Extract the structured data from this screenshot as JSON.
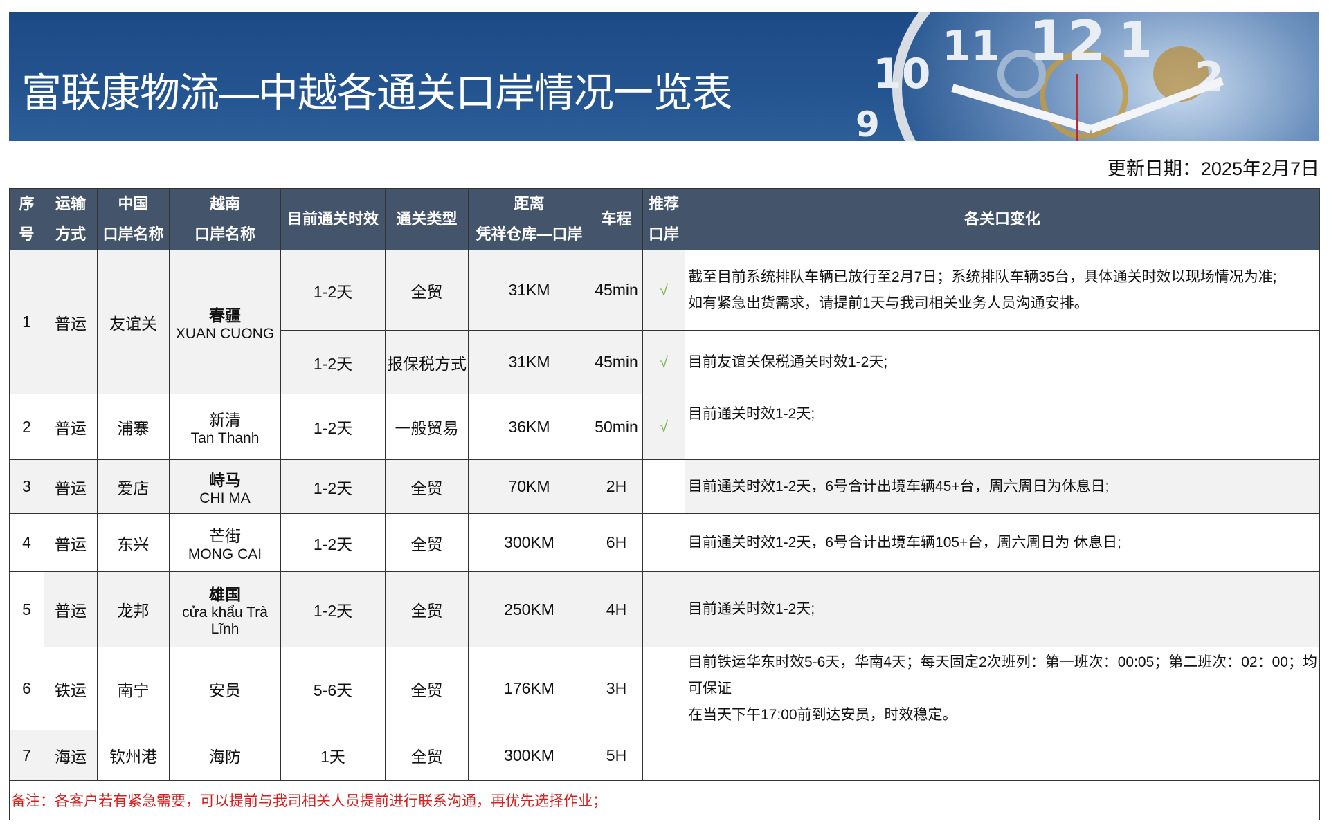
{
  "header": {
    "title": "富联康物流—中越各通关口岸情况一览表",
    "update_date": "更新日期：2025年2月7日"
  },
  "colors": {
    "header_bg": "#44546a",
    "banner": "#1f4e8c",
    "check": "#7ab648",
    "note": "#d21f1f"
  },
  "columns": [
    {
      "l1": "序",
      "l2": "号"
    },
    {
      "l1": "运输",
      "l2": "方式"
    },
    {
      "l1": "中国",
      "l2": "口岸名称"
    },
    {
      "l1": "越南",
      "l2": "口岸名称"
    },
    {
      "l1": "目前通关时效",
      "l2": ""
    },
    {
      "l1": "通关类型",
      "l2": ""
    },
    {
      "l1": "距离",
      "l2": "凭祥仓库—口岸"
    },
    {
      "l1": "车程",
      "l2": ""
    },
    {
      "l1": "推荐",
      "l2": "口岸"
    },
    {
      "l1": "各关口变化",
      "l2": ""
    }
  ],
  "rows": [
    {
      "no": "1",
      "mode": "普运",
      "cn_port": "友谊关",
      "vn_port_cn": "春疆",
      "vn_port_en": "XUAN CUONG",
      "sub": [
        {
          "time": "1-2天",
          "type": "全贸",
          "distance": "31KM",
          "drive": "45min",
          "recommend": "√",
          "remark1": "截至目前系统排队车辆已放行至2月7日；系统排队车辆35台，具体通关时效以现场情况为准;",
          "remark2": "如有紧急出货需求，请提前1天与我司相关业务人员沟通安排。"
        },
        {
          "time": "1-2天",
          "type": "报保税方式",
          "distance": "31KM",
          "drive": "45min",
          "recommend": "√",
          "remark1": "目前友谊关保税通关时效1-2天;"
        }
      ]
    },
    {
      "no": "2",
      "mode": "普运",
      "cn_port": "浦寨",
      "vn_port_cn": "新清",
      "vn_port_en": "Tan Thanh",
      "time": "1-2天",
      "type": "一般贸易",
      "distance": "36KM",
      "drive": "50min",
      "recommend": "√",
      "remark1": "目前通关时效1-2天;"
    },
    {
      "no": "3",
      "mode": "普运",
      "cn_port": "爱店",
      "vn_port_cn": "峙马",
      "vn_port_en": "CHI MA",
      "time": "1-2天",
      "type": "全贸",
      "distance": "70KM",
      "drive": "2H",
      "recommend": "",
      "remark1": "目前通关时效1-2天，6号合计出境车辆45+台，周六周日为休息日;"
    },
    {
      "no": "4",
      "mode": "普运",
      "cn_port": "东兴",
      "vn_port_cn": "芒街",
      "vn_port_en": "MONG CAI",
      "time": "1-2天",
      "type": "全贸",
      "distance": "300KM",
      "drive": "6H",
      "recommend": "",
      "remark1": "目前通关时效1-2天，6号合计出境车辆105+台，周六周日为 休息日;"
    },
    {
      "no": "5",
      "mode": "普运",
      "cn_port": "龙邦",
      "vn_port_cn": "雄国",
      "vn_port_en": "cửa khẩu Trà Lĩnh",
      "time": "1-2天",
      "type": "全贸",
      "distance": "250KM",
      "drive": "4H",
      "recommend": "",
      "remark1": "目前通关时效1-2天;"
    },
    {
      "no": "6",
      "mode": "铁运",
      "cn_port": "南宁",
      "vn_port_cn": "安员",
      "vn_port_en": "",
      "time": "5-6天",
      "type": "全贸",
      "distance": "176KM",
      "drive": "3H",
      "recommend": "",
      "remark1": "目前铁运华东时效5-6天，华南4天；每天固定2次班列：第一班次：00:05；第二班次：02：00；均可保证",
      "remark2": "在当天下午17:00前到达安员，时效稳定。"
    },
    {
      "no": "7",
      "mode": "海运",
      "cn_port": "钦州港",
      "vn_port_cn": "海防",
      "vn_port_en": "",
      "time": "1天",
      "type": "全贸",
      "distance": "300KM",
      "drive": "5H",
      "recommend": "",
      "remark1": ""
    }
  ],
  "note": "备注：各客户若有紧急需要，可以提前与我司相关人员提前进行联系沟通，再优先选择作业；"
}
